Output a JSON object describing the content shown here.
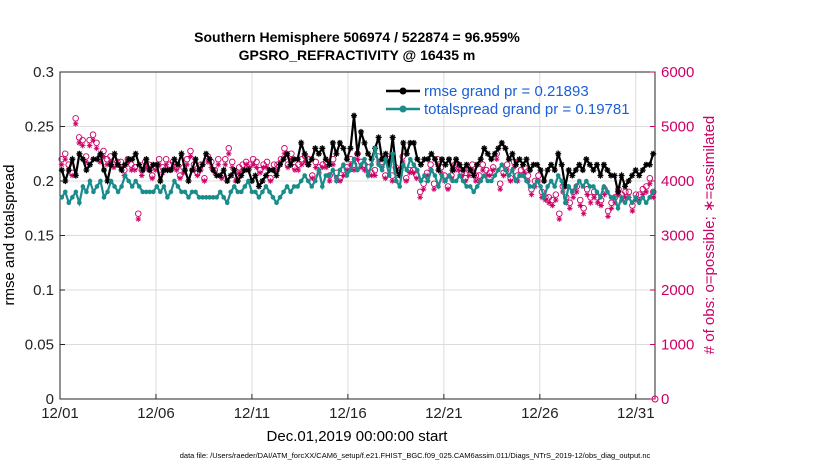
{
  "chart_data": {
    "type": "line",
    "title": "Southern Hemisphere 506974 / 522874 = 96.959%",
    "subtitle": "GPSRO_REFRACTIVITY @ 16435 m",
    "xlabel": "Dec.01,2019 00:00:00 start",
    "ylabel": "rmse and totalspread",
    "ylabel_right": "# of obs: o=possible; ∗=assimilated",
    "footnote": "data file: /Users/raeder/DAI/ATM_forcXX/CAM6_setup/f.e21.FHIST_BGC.f09_025.CAM6assim.011/Diags_NTrS_2019-12/obs_diag_output.nc",
    "xlim": [
      0,
      31
    ],
    "ylim": [
      0,
      0.3
    ],
    "ylim_right": [
      0,
      6000
    ],
    "x_ticks": [
      "12/01",
      "12/06",
      "12/11",
      "12/16",
      "12/21",
      "12/26",
      "12/31"
    ],
    "y_ticks": [
      "0",
      "0.05",
      "0.1",
      "0.15",
      "0.2",
      "0.25",
      "0.3"
    ],
    "y_ticks_right": [
      "0",
      "1000",
      "2000",
      "3000",
      "4000",
      "5000",
      "6000"
    ],
    "grid": true,
    "legend_position": "top-right",
    "series": [
      {
        "name": "rmse grand pr = 0.21893",
        "color": "#000000",
        "axis": "left",
        "marker": "asterisk",
        "values": [
          0.21,
          0.2,
          0.21,
          0.22,
          0.205,
          0.225,
          0.22,
          0.21,
          0.215,
          0.22,
          0.22,
          0.225,
          0.21,
          0.2,
          0.215,
          0.225,
          0.215,
          0.21,
          0.215,
          0.22,
          0.22,
          0.225,
          0.215,
          0.21,
          0.22,
          0.21,
          0.215,
          0.215,
          0.2,
          0.21,
          0.21,
          0.21,
          0.22,
          0.215,
          0.225,
          0.21,
          0.2,
          0.21,
          0.22,
          0.21,
          0.215,
          0.225,
          0.22,
          0.21,
          0.205,
          0.205,
          0.21,
          0.2,
          0.205,
          0.21,
          0.2,
          0.205,
          0.21,
          0.21,
          0.2,
          0.205,
          0.195,
          0.2,
          0.205,
          0.21,
          0.21,
          0.205,
          0.215,
          0.22,
          0.225,
          0.215,
          0.22,
          0.22,
          0.235,
          0.225,
          0.215,
          0.22,
          0.23,
          0.225,
          0.23,
          0.22,
          0.215,
          0.235,
          0.225,
          0.235,
          0.23,
          0.22,
          0.23,
          0.26,
          0.225,
          0.245,
          0.235,
          0.225,
          0.22,
          0.23,
          0.24,
          0.22,
          0.225,
          0.215,
          0.24,
          0.21,
          0.205,
          0.235,
          0.225,
          0.235,
          0.235,
          0.22,
          0.215,
          0.22,
          0.22,
          0.225,
          0.22,
          0.21,
          0.22,
          0.215,
          0.22,
          0.21,
          0.22,
          0.215,
          0.21,
          0.215,
          0.21,
          0.205,
          0.215,
          0.22,
          0.23,
          0.225,
          0.22,
          0.225,
          0.23,
          0.235,
          0.23,
          0.22,
          0.225,
          0.215,
          0.22,
          0.215,
          0.22,
          0.21,
          0.215,
          0.215,
          0.21,
          0.2,
          0.21,
          0.215,
          0.21,
          0.225,
          0.215,
          0.195,
          0.21,
          0.205,
          0.21,
          0.215,
          0.21,
          0.22,
          0.215,
          0.21,
          0.215,
          0.205,
          0.215,
          0.21,
          0.205,
          0.205,
          0.19,
          0.205,
          0.195,
          0.2,
          0.205,
          0.21,
          0.205,
          0.21,
          0.215,
          0.215,
          0.225
        ]
      },
      {
        "name": "totalspread grand pr = 0.19781",
        "color": "#1a8c8c",
        "axis": "left",
        "marker": "dot",
        "values": [
          0.185,
          0.19,
          0.18,
          0.185,
          0.19,
          0.18,
          0.195,
          0.19,
          0.2,
          0.19,
          0.195,
          0.2,
          0.185,
          0.19,
          0.2,
          0.195,
          0.19,
          0.195,
          0.205,
          0.2,
          0.195,
          0.2,
          0.195,
          0.19,
          0.19,
          0.19,
          0.19,
          0.195,
          0.19,
          0.195,
          0.185,
          0.19,
          0.2,
          0.195,
          0.19,
          0.19,
          0.185,
          0.19,
          0.19,
          0.185,
          0.185,
          0.185,
          0.185,
          0.185,
          0.185,
          0.19,
          0.185,
          0.18,
          0.19,
          0.195,
          0.19,
          0.19,
          0.195,
          0.2,
          0.19,
          0.19,
          0.185,
          0.19,
          0.195,
          0.19,
          0.185,
          0.18,
          0.185,
          0.19,
          0.195,
          0.19,
          0.195,
          0.195,
          0.2,
          0.205,
          0.2,
          0.195,
          0.2,
          0.21,
          0.195,
          0.205,
          0.205,
          0.21,
          0.2,
          0.21,
          0.215,
          0.205,
          0.21,
          0.22,
          0.21,
          0.215,
          0.22,
          0.205,
          0.215,
          0.23,
          0.215,
          0.21,
          0.22,
          0.205,
          0.225,
          0.2,
          0.195,
          0.215,
          0.21,
          0.22,
          0.215,
          0.21,
          0.2,
          0.205,
          0.2,
          0.21,
          0.205,
          0.195,
          0.205,
          0.2,
          0.205,
          0.2,
          0.2,
          0.205,
          0.2,
          0.195,
          0.195,
          0.19,
          0.195,
          0.2,
          0.205,
          0.2,
          0.2,
          0.205,
          0.21,
          0.215,
          0.21,
          0.205,
          0.21,
          0.2,
          0.205,
          0.205,
          0.2,
          0.195,
          0.195,
          0.2,
          0.195,
          0.185,
          0.195,
          0.2,
          0.195,
          0.205,
          0.2,
          0.18,
          0.195,
          0.19,
          0.195,
          0.2,
          0.195,
          0.2,
          0.195,
          0.195,
          0.19,
          0.185,
          0.195,
          0.19,
          0.185,
          0.185,
          0.175,
          0.185,
          0.18,
          0.185,
          0.18,
          0.185,
          0.18,
          0.185,
          0.18,
          0.185,
          0.19
        ]
      },
      {
        "name": "possible obs",
        "color": "#cc0066",
        "axis": "right",
        "marker": "circle",
        "values": [
          4400,
          4500,
          4300,
          4150,
          5150,
          4800,
          4750,
          4450,
          4750,
          4850,
          4700,
          4450,
          4550,
          4400,
          4450,
          4300,
          4350,
          4350,
          4200,
          4400,
          4300,
          4250,
          3400,
          4200,
          4350,
          4300,
          4100,
          4250,
          4400,
          4250,
          4400,
          4300,
          4350,
          4250,
          4100,
          4250,
          4400,
          4550,
          4300,
          4150,
          4300,
          4050,
          4450,
          4350,
          4200,
          4400,
          4100,
          4400,
          4600,
          4350,
          4100,
          4250,
          4300,
          4350,
          4300,
          4400,
          4350,
          4200,
          4300,
          4350,
          4050,
          4300,
          4300,
          4400,
          4600,
          4300,
          4500,
          4250,
          4300,
          4400,
          4450,
          4400,
          4100,
          4350,
          4250,
          4300,
          4350,
          4100,
          4400,
          4150,
          4050,
          4200,
          4250,
          4400,
          4300,
          4500,
          4350,
          4300,
          4250,
          4150,
          4200,
          4450,
          4350,
          4100,
          4400,
          4100,
          4250,
          4200,
          4450,
          4050,
          4200,
          4200,
          4100,
          3800,
          3950,
          4150,
          4300,
          3950,
          4400,
          4250,
          4100,
          3900,
          4100,
          4300,
          4300,
          4150,
          4050,
          4200,
          4300,
          4100,
          4100,
          4300,
          4200,
          4150,
          4250,
          4500,
          3950,
          4150,
          4300,
          4050,
          4350,
          4100,
          4200,
          4250,
          4100,
          3850,
          4000,
          4100,
          3800,
          3700,
          3700,
          3650,
          3750,
          3400,
          3900,
          3700,
          3600,
          3800,
          3900,
          3650,
          3500,
          3850,
          3700,
          3800,
          3700,
          3650,
          3850,
          3450,
          3600,
          3700,
          3850,
          3750,
          3800,
          3800,
          3550,
          3750,
          3750,
          3850,
          3900,
          4050,
          3800
        ]
      },
      {
        "name": "assimilated obs",
        "color": "#cc0066",
        "axis": "right",
        "marker": "asterisk",
        "values": [
          4300,
          4400,
          4200,
          4100,
          5050,
          4700,
          4650,
          4350,
          4650,
          4750,
          4600,
          4350,
          4450,
          4300,
          4350,
          4250,
          4300,
          4250,
          4100,
          4350,
          4200,
          4200,
          3300,
          4100,
          4250,
          4200,
          4050,
          4200,
          4300,
          4150,
          4300,
          4200,
          4250,
          4200,
          4050,
          4150,
          4300,
          4450,
          4200,
          4100,
          4200,
          4000,
          4350,
          4250,
          4150,
          4300,
          4050,
          4300,
          4500,
          4250,
          4000,
          4150,
          4200,
          4300,
          4250,
          4300,
          4250,
          4150,
          4250,
          4250,
          4000,
          4200,
          4200,
          4350,
          4500,
          4250,
          4400,
          4200,
          4200,
          4300,
          4350,
          4300,
          4050,
          4250,
          4150,
          4250,
          4250,
          4000,
          4300,
          4050,
          4000,
          4100,
          4200,
          4300,
          4200,
          4400,
          4250,
          4200,
          4150,
          4100,
          4100,
          4350,
          4250,
          4050,
          4300,
          4000,
          4150,
          4100,
          4350,
          4000,
          4150,
          4150,
          4050,
          3700,
          3850,
          4100,
          4200,
          3850,
          4300,
          4150,
          4000,
          3850,
          4050,
          4200,
          4200,
          4100,
          4000,
          4100,
          4200,
          4000,
          4000,
          4200,
          4100,
          4100,
          4200,
          4400,
          3850,
          4100,
          4200,
          4000,
          4250,
          4000,
          4100,
          4150,
          4000,
          3750,
          3900,
          4000,
          3700,
          3650,
          3600,
          3550,
          3650,
          3300,
          3800,
          3600,
          3500,
          3700,
          3800,
          3550,
          3400,
          3750,
          3600,
          3700,
          3600,
          3550,
          3750,
          3350,
          3500,
          3600,
          3750,
          3650,
          3700,
          3700,
          3450,
          3650,
          3650,
          3750,
          3800,
          3950,
          3700
        ]
      }
    ]
  }
}
